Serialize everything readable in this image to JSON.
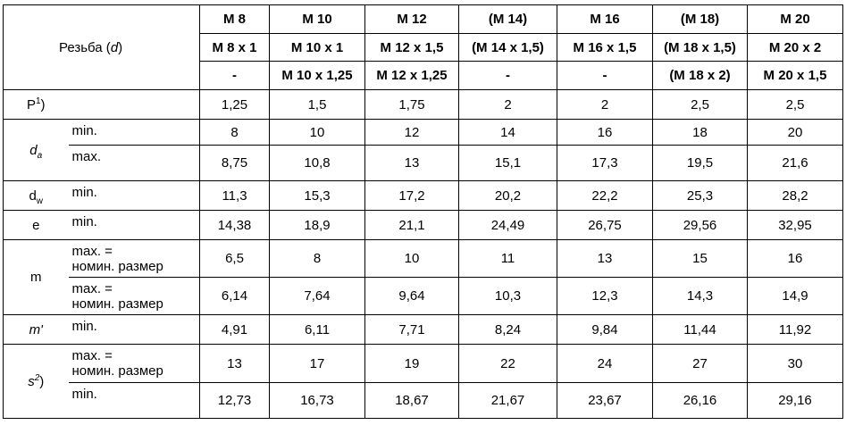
{
  "table": {
    "corner": [
      {
        "text": "Резьба ("
      },
      {
        "text": "d",
        "italic": true
      },
      {
        "text": ")"
      }
    ],
    "header_rows": [
      [
        "M 8",
        "M 10",
        "M 12",
        "(M 14)",
        "M 16",
        "(M 18)",
        "M 20"
      ],
      [
        "M 8 x 1",
        "M 10 x 1",
        "M 12 x 1,5",
        "(M 14 x 1,5)",
        "M 16 x 1,5",
        "(M 18 x 1,5)",
        "M 20 x 2"
      ],
      [
        "-",
        "M 10 x 1,25",
        "M 12 x 1,25",
        "-",
        "-",
        "(M 18 x 2)",
        "M 20 x 1,5"
      ]
    ],
    "groups": [
      {
        "symbol": [
          {
            "text": "P"
          },
          {
            "text": "1",
            "sup": true
          },
          {
            "text": ")"
          }
        ],
        "rows": [
          {
            "values": [
              "1,25",
              "1,5",
              "1,75",
              "2",
              "2",
              "2,5",
              "2,5"
            ]
          }
        ]
      },
      {
        "symbol": [
          {
            "text": "d",
            "italic": true
          },
          {
            "text": "a",
            "sub": true,
            "italic": true
          }
        ],
        "rows": [
          {
            "qualifier": "min.",
            "values": [
              "8",
              "10",
              "12",
              "14",
              "16",
              "18",
              "20"
            ]
          },
          {
            "qualifier": "max.",
            "values": [
              "8,75",
              "10,8",
              "13",
              "15,1",
              "17,3",
              "19,5",
              "21,6"
            ]
          }
        ]
      },
      {
        "symbol": [
          {
            "text": "d"
          },
          {
            "text": "w",
            "sub": true
          }
        ],
        "rows": [
          {
            "qualifier": "min.",
            "values": [
              "11,3",
              "15,3",
              "17,2",
              "20,2",
              "22,2",
              "25,3",
              "28,2"
            ]
          }
        ]
      },
      {
        "symbol": [
          {
            "text": "e"
          }
        ],
        "rows": [
          {
            "qualifier": "min.",
            "values": [
              "14,38",
              "18,9",
              "21,1",
              "24,49",
              "26,75",
              "29,56",
              "32,95"
            ]
          }
        ]
      },
      {
        "symbol": [
          {
            "text": "m"
          }
        ],
        "rows": [
          {
            "qualifier": "max. =\nномин. размер",
            "values": [
              "6,5",
              "8",
              "10",
              "11",
              "13",
              "15",
              "16"
            ]
          },
          {
            "qualifier": "max. =\nномин. размер",
            "values": [
              "6,14",
              "7,64",
              "9,64",
              "10,3",
              "12,3",
              "14,3",
              "14,9"
            ]
          }
        ]
      },
      {
        "symbol": [
          {
            "text": "m'",
            "italic": true
          }
        ],
        "rows": [
          {
            "qualifier": "min.",
            "values": [
              "4,91",
              "6,11",
              "7,71",
              "8,24",
              "9,84",
              "11,44",
              "11,92"
            ]
          }
        ]
      },
      {
        "symbol": [
          {
            "text": "s",
            "italic": true
          },
          {
            "text": "2",
            "sup": true,
            "italic": true
          },
          {
            "text": ")"
          }
        ],
        "rows": [
          {
            "qualifier": "max. =\nномин. размер",
            "values": [
              "13",
              "17",
              "19",
              "22",
              "24",
              "27",
              "30"
            ]
          },
          {
            "qualifier": "min.",
            "values": [
              "12,73",
              "16,73",
              "18,67",
              "21,67",
              "23,67",
              "26,16",
              "29,16"
            ]
          }
        ]
      }
    ]
  }
}
